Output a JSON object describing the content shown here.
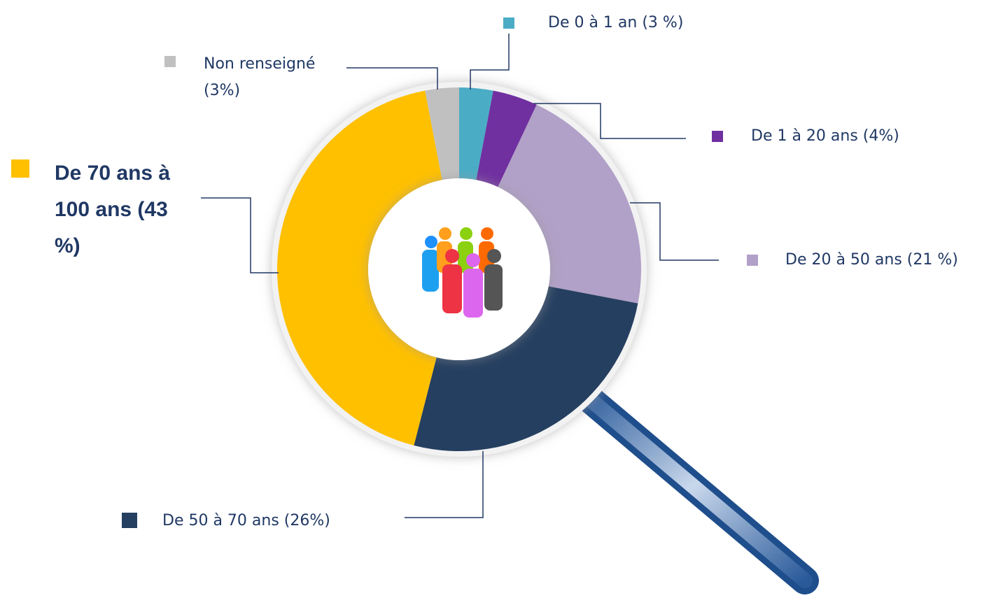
{
  "chart_data": {
    "type": "pie",
    "donut": true,
    "categories": [
      "De 0 à 1 an (3 %)",
      "De 1 à 20 ans (4%)",
      "De 20 à 50 ans (21 %)",
      "De 50 à 70 ans (26%)",
      "De 70 ans à 100 ans (43 %)",
      "Non renseigné (3%)"
    ],
    "values": [
      3,
      4,
      21,
      26,
      43,
      3
    ],
    "colors": [
      "#4bacc6",
      "#7030a0",
      "#b1a0c7",
      "#253f60",
      "#ffc000",
      "#c0c0c0"
    ]
  }
}
